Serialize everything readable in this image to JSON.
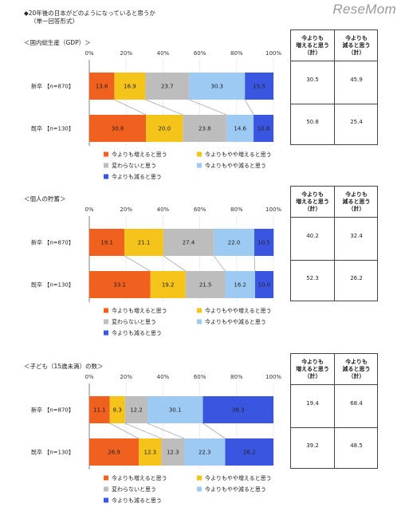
{
  "header": {
    "title": "◆20年後の日本がどのようになっていると思うか",
    "subtitle": "（単一回答形式）",
    "watermark": "ReseMom"
  },
  "legend": [
    {
      "label": "今よりも増えると思う",
      "color": "#f0601e"
    },
    {
      "label": "今よりもやや増えると思う",
      "color": "#f5c41b"
    },
    {
      "label": "変わらないと思う",
      "color": "#bdbdbd"
    },
    {
      "label": "今よりもやや減ると思う",
      "color": "#9ccaf2"
    },
    {
      "label": "今よりも減ると思う",
      "color": "#3a55e0"
    }
  ],
  "table_headers": {
    "increase": "今よりも\n増えると思う\n（計）",
    "decrease": "今よりも\n減ると思う\n（計）"
  },
  "chart_data": [
    {
      "type": "bar",
      "stacked": "horizontal-100%",
      "title": "＜国内総生産（GDP）＞",
      "ticks": [
        "0%",
        "20%",
        "40%",
        "60%",
        "80%",
        "100%"
      ],
      "categories": [
        "新卒 【n=870】",
        "既卒 【n=130】"
      ],
      "series": [
        {
          "name": "今よりも増えると思う",
          "values": [
            13.6,
            30.8
          ]
        },
        {
          "name": "今よりもやや増えると思う",
          "values": [
            16.9,
            20.0
          ]
        },
        {
          "name": "変わらないと思う",
          "values": [
            23.7,
            23.8
          ]
        },
        {
          "name": "今よりもやや減ると思う",
          "values": [
            30.3,
            14.6
          ]
        },
        {
          "name": "今よりも減ると思う",
          "values": [
            15.5,
            10.8
          ]
        }
      ],
      "table": {
        "increase": [
          "30.5",
          "50.8"
        ],
        "decrease": [
          "45.9",
          "25.4"
        ]
      },
      "grid": true,
      "legend_position": "bottom"
    },
    {
      "type": "bar",
      "stacked": "horizontal-100%",
      "title": "＜個人の貯蓄＞",
      "ticks": [
        "0%",
        "20%",
        "40%",
        "60%",
        "80%",
        "100%"
      ],
      "categories": [
        "新卒 【n=870】",
        "既卒 【n=130】"
      ],
      "series": [
        {
          "name": "今よりも増えると思う",
          "values": [
            19.1,
            33.1
          ]
        },
        {
          "name": "今よりもやや増えると思う",
          "values": [
            21.1,
            19.2
          ]
        },
        {
          "name": "変わらないと思う",
          "values": [
            27.4,
            21.5
          ]
        },
        {
          "name": "今よりもやや減ると思う",
          "values": [
            22.0,
            16.2
          ]
        },
        {
          "name": "今よりも減ると思う",
          "values": [
            10.5,
            10.0
          ]
        }
      ],
      "table": {
        "increase": [
          "40.2",
          "52.3"
        ],
        "decrease": [
          "32.4",
          "26.2"
        ]
      },
      "grid": true,
      "legend_position": "bottom"
    },
    {
      "type": "bar",
      "stacked": "horizontal-100%",
      "title": "＜子ども（15歳未満）の数＞",
      "ticks": [
        "0%",
        "20%",
        "40%",
        "60%",
        "80%",
        "100%"
      ],
      "categories": [
        "新卒 【n=870】",
        "既卒 【n=130】"
      ],
      "series": [
        {
          "name": "今よりも増えると思う",
          "values": [
            11.1,
            26.9
          ]
        },
        {
          "name": "今よりもやや増えると思う",
          "values": [
            8.3,
            12.3
          ]
        },
        {
          "name": "変わらないと思う",
          "values": [
            12.2,
            12.3
          ]
        },
        {
          "name": "今よりもやや減ると思う",
          "values": [
            30.1,
            22.3
          ]
        },
        {
          "name": "今よりも減ると思う",
          "values": [
            38.3,
            26.2
          ]
        }
      ],
      "table": {
        "increase": [
          "19.4",
          "39.2"
        ],
        "decrease": [
          "68.4",
          "48.5"
        ]
      },
      "grid": true,
      "legend_position": "bottom"
    }
  ]
}
